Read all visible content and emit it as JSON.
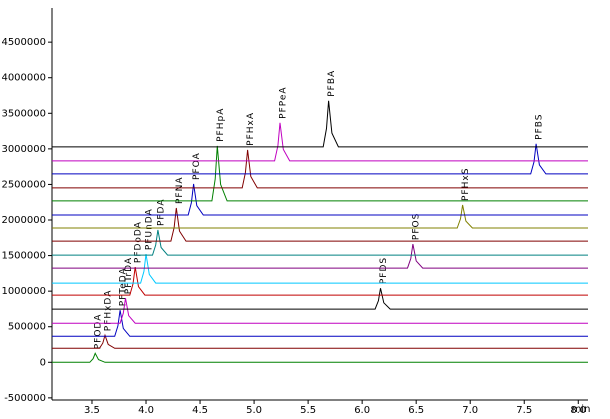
{
  "chart_data": {
    "type": "line",
    "x_label": "min",
    "xlim": [
      3.13,
      8.09
    ],
    "xticks": [
      3.5,
      {
        "value": 4,
        "label": "4.0"
      },
      4.5,
      {
        "value": 5,
        "label": "5.0"
      },
      5.5,
      {
        "value": 6,
        "label": "6.0"
      },
      6.5,
      {
        "value": 7,
        "label": "7.0"
      },
      7.5,
      {
        "value": 8,
        "label": "8.0"
      }
    ],
    "ylim": [
      -530000,
      4980000
    ],
    "yticks": [
      -500000,
      0,
      500000,
      1000000,
      1500000,
      2000000,
      2500000,
      3000000,
      3500000,
      4000000,
      4500000
    ],
    "series": [
      {
        "name": "PFODA",
        "color": "#008000",
        "x": [
          3.13,
          3.48,
          3.51,
          3.53,
          3.56,
          3.62,
          8.09
        ],
        "values": [
          0,
          0,
          51000,
          127000,
          38000,
          0,
          0
        ]
      },
      {
        "name": "PFHxDA",
        "color": "#800000",
        "x": [
          3.13,
          3.57,
          3.6,
          3.62,
          3.65,
          3.71,
          8.09
        ],
        "values": [
          197000,
          197000,
          270000,
          380000,
          252000,
          197000,
          197000
        ]
      },
      {
        "name": "PFTeDA",
        "color": "#0000c0",
        "x": [
          3.13,
          3.71,
          3.74,
          3.76,
          3.79,
          3.85,
          8.09
        ],
        "values": [
          366000,
          366000,
          512000,
          732000,
          476000,
          366000,
          366000
        ]
      },
      {
        "name": "PFTrDA",
        "color": "#c000c0",
        "x": [
          3.13,
          3.76,
          3.79,
          3.81,
          3.84,
          3.9,
          8.09
        ],
        "values": [
          549000,
          549000,
          690000,
          901000,
          655000,
          549000,
          549000
        ]
      },
      {
        "name": "PFDS",
        "color": "#000000",
        "x": [
          3.13,
          6.12,
          6.15,
          6.17,
          6.2,
          6.26,
          8.09
        ],
        "values": [
          747000,
          747000,
          865000,
          1042000,
          836000,
          747000,
          747000
        ]
      },
      {
        "name": "PFDoDA",
        "color": "#c00000",
        "x": [
          3.13,
          3.85,
          3.88,
          3.9,
          3.93,
          3.99,
          8.09
        ],
        "values": [
          944000,
          944000,
          1102000,
          1338000,
          1062000,
          944000,
          944000
        ]
      },
      {
        "name": "PFUnDA",
        "color": "#00c8ff",
        "x": [
          3.13,
          3.95,
          3.98,
          4.0,
          4.03,
          4.09,
          8.09
        ],
        "values": [
          1113000,
          1113000,
          1276000,
          1521000,
          1235000,
          1113000,
          1113000
        ]
      },
      {
        "name": "PFOS",
        "color": "#800080",
        "x": [
          3.13,
          6.42,
          6.45,
          6.47,
          6.5,
          6.56,
          8.09
        ],
        "values": [
          1324000,
          1324000,
          1459000,
          1662000,
          1425000,
          1324000,
          1324000
        ]
      },
      {
        "name": "PFDA",
        "color": "#008080",
        "x": [
          3.13,
          4.06,
          4.09,
          4.11,
          4.14,
          4.2,
          8.09
        ],
        "values": [
          1507000,
          1507000,
          1648000,
          1859000,
          1613000,
          1507000,
          1507000
        ]
      },
      {
        "name": "PFNA",
        "color": "#800000",
        "x": [
          3.13,
          4.23,
          4.26,
          4.28,
          4.31,
          4.37,
          8.09
        ],
        "values": [
          1704000,
          1704000,
          1890000,
          2169000,
          1844000,
          1704000,
          1704000
        ]
      },
      {
        "name": "PFHxS",
        "color": "#808000",
        "x": [
          3.13,
          6.88,
          6.91,
          6.93,
          6.96,
          7.02,
          8.09
        ],
        "values": [
          1887000,
          1887000,
          2017000,
          2211000,
          1984000,
          1887000,
          1887000
        ]
      },
      {
        "name": "PFOA",
        "color": "#0000c0",
        "x": [
          3.13,
          4.39,
          4.42,
          4.44,
          4.47,
          4.53,
          8.09
        ],
        "values": [
          2070000,
          2070000,
          2245000,
          2507000,
          2201000,
          2070000,
          2070000
        ]
      },
      {
        "name": "PFHpA",
        "color": "#008000",
        "x": [
          3.13,
          4.61,
          4.64,
          4.66,
          4.69,
          4.75,
          8.09
        ],
        "values": [
          2268000,
          2268000,
          2578000,
          3042000,
          2500000,
          2268000,
          2268000
        ]
      },
      {
        "name": "PFHxA",
        "color": "#800000",
        "x": [
          3.13,
          4.89,
          4.92,
          4.94,
          4.97,
          5.03,
          8.09
        ],
        "values": [
          2451000,
          2451000,
          2665000,
          2986000,
          2612000,
          2451000,
          2451000
        ]
      },
      {
        "name": "PFBS",
        "color": "#0000c0",
        "x": [
          3.13,
          7.56,
          7.59,
          7.61,
          7.64,
          7.7,
          8.09
        ],
        "values": [
          2648000,
          2648000,
          2817000,
          3071000,
          2775000,
          2648000,
          2648000
        ]
      },
      {
        "name": "PFPeA",
        "color": "#c000c0",
        "x": [
          3.13,
          5.19,
          5.22,
          5.24,
          5.27,
          5.33,
          8.09
        ],
        "values": [
          2831000,
          2831000,
          3045000,
          3366000,
          2992000,
          2831000,
          2831000
        ]
      },
      {
        "name": "PFBA",
        "color": "#000000",
        "x": [
          3.13,
          5.64,
          5.67,
          5.69,
          5.72,
          5.78,
          8.09
        ],
        "values": [
          3028000,
          3028000,
          3287000,
          3676000,
          3222000,
          3028000,
          3028000
        ]
      }
    ]
  }
}
